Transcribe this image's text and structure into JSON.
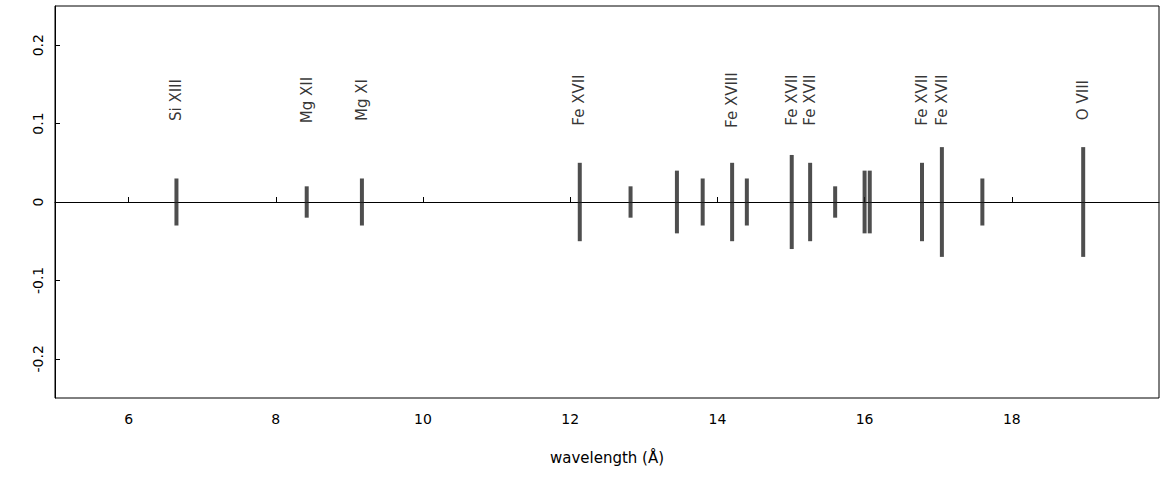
{
  "chart_data": {
    "type": "scatter",
    "xlabel": "wavelength (Å)",
    "xlim": [
      5,
      20
    ],
    "ylim": [
      -0.25,
      0.25
    ],
    "xticks": [
      6,
      8,
      10,
      12,
      14,
      16,
      18
    ],
    "yticks": [
      -0.2,
      -0.1,
      0,
      0.1,
      0.2
    ],
    "grid": false,
    "color": "#222222",
    "x": [
      6.65,
      8.42,
      9.17,
      12.13,
      12.82,
      13.45,
      13.8,
      14.2,
      14.4,
      15.01,
      15.26,
      15.6,
      16.0,
      16.07,
      16.78,
      17.05,
      17.6,
      18.97
    ],
    "extent": [
      0.03,
      0.02,
      0.03,
      0.05,
      0.02,
      0.04,
      0.03,
      0.05,
      0.03,
      0.06,
      0.05,
      0.02,
      0.04,
      0.04,
      0.05,
      0.07,
      0.03,
      0.07
    ],
    "annotations": [
      {
        "text": "Si XIII",
        "x": 6.65,
        "y": 0.13
      },
      {
        "text": "Mg XII",
        "x": 8.42,
        "y": 0.13
      },
      {
        "text": "Mg XI",
        "x": 9.17,
        "y": 0.13
      },
      {
        "text": "Fe XVII",
        "x": 12.12,
        "y": 0.13
      },
      {
        "text": "Fe XVIII",
        "x": 14.2,
        "y": 0.13
      },
      {
        "text": "Fe XVII",
        "x": 15.01,
        "y": 0.13
      },
      {
        "text": "Fe XVII",
        "x": 15.26,
        "y": 0.13
      },
      {
        "text": "Fe XVII",
        "x": 16.78,
        "y": 0.13
      },
      {
        "text": "Fe XVII",
        "x": 17.05,
        "y": 0.13
      },
      {
        "text": "O VIII",
        "x": 18.97,
        "y": 0.13
      }
    ]
  }
}
